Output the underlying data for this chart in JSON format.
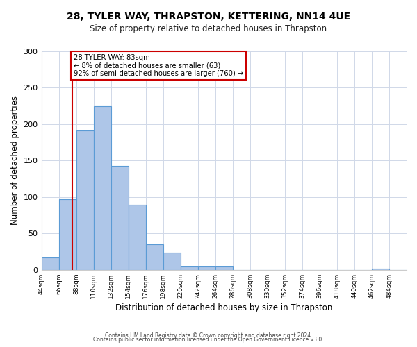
{
  "title": "28, TYLER WAY, THRAPSTON, KETTERING, NN14 4UE",
  "subtitle": "Size of property relative to detached houses in Thrapston",
  "xlabel": "Distribution of detached houses by size in Thrapston",
  "ylabel": "Number of detached properties",
  "bin_edges": [
    44,
    66,
    88,
    110,
    132,
    154,
    176,
    198,
    220,
    242,
    264,
    286,
    308,
    330,
    352,
    374,
    396,
    418,
    440,
    462,
    484,
    506
  ],
  "bar_heights": [
    17,
    97,
    191,
    225,
    143,
    89,
    35,
    24,
    5,
    5,
    5,
    0,
    0,
    0,
    0,
    0,
    0,
    0,
    0,
    2,
    0
  ],
  "bar_color": "#aec6e8",
  "bar_edge_color": "#5b9bd5",
  "property_line_x": 83,
  "property_line_color": "#cc0000",
  "annotation_title": "28 TYLER WAY: 83sqm",
  "annotation_line1": "← 8% of detached houses are smaller (63)",
  "annotation_line2": "92% of semi-detached houses are larger (760) →",
  "annotation_box_color": "#cc0000",
  "ylim": [
    0,
    300
  ],
  "yticks": [
    0,
    50,
    100,
    150,
    200,
    250,
    300
  ],
  "xtick_labels": [
    "44sqm",
    "66sqm",
    "88sqm",
    "110sqm",
    "132sqm",
    "154sqm",
    "176sqm",
    "198sqm",
    "220sqm",
    "242sqm",
    "264sqm",
    "286sqm",
    "308sqm",
    "330sqm",
    "352sqm",
    "374sqm",
    "396sqm",
    "418sqm",
    "440sqm",
    "462sqm",
    "484sqm"
  ],
  "footer1": "Contains HM Land Registry data © Crown copyright and database right 2024.",
  "footer2": "Contains public sector information licensed under the Open Government Licence v3.0.",
  "background_color": "#ffffff",
  "grid_color": "#d0d8e8",
  "fig_width": 6.0,
  "fig_height": 5.0,
  "dpi": 100
}
